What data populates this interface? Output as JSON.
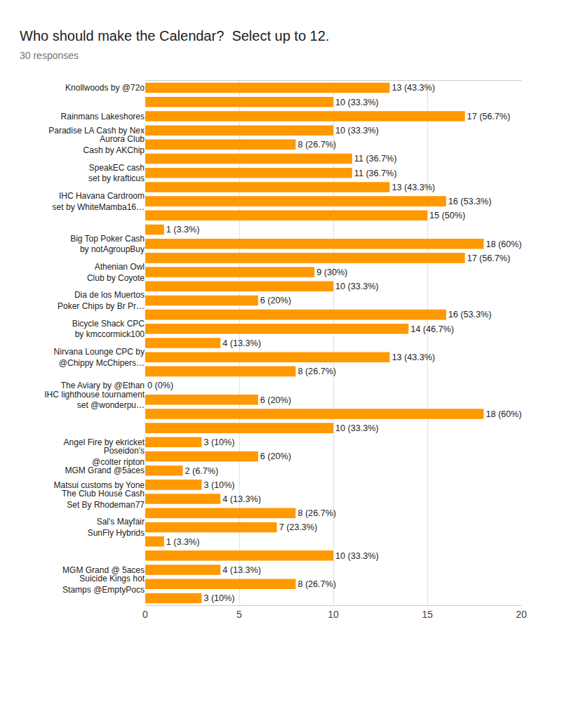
{
  "chart_data": {
    "type": "bar",
    "title": "Who should make the Calendar?  Select up to 12.",
    "subtitle": "30 responses",
    "orientation": "horizontal",
    "categories": [
      "Knollwoods by @72o",
      null,
      "Rainmans Lakeshores",
      "Paradise LA Cash by Nex",
      "Aurora Club Cash by AKChip",
      null,
      "SpeakEC cash set by krafticus",
      null,
      "IHC Havana Cardroom set by WhiteMamba16…",
      null,
      null,
      "Big Top Poker Cash by notAgroupBuy",
      null,
      "Athenian Owl Club by Coyote",
      null,
      "Dia de los Muertos Poker Chips by Br Pr…",
      null,
      "Bicycle Shack CPC by kmccormick100",
      null,
      "Nirvana Lounge CPC by @Chippy McChipers…",
      null,
      "The Aviary by @Ethan",
      "IHC lighthouse tournament set @wonderpu…",
      null,
      null,
      "Angel Fire by ekricket",
      "Poseidon's @colter ripton",
      "MGM Grand @5aces",
      "Matsui customs by Yone",
      "The Club House Cash Set By Rhodeman77",
      null,
      "Sal's Mayfair SunFly Hybrids",
      null,
      null,
      "MGM Grand @ 5aces",
      "Suicide Kings hot Stamps @EmptyPocs",
      null
    ],
    "values": [
      13,
      10,
      17,
      10,
      8,
      11,
      11,
      13,
      16,
      15,
      1,
      18,
      17,
      9,
      10,
      6,
      16,
      14,
      4,
      13,
      8,
      0,
      6,
      18,
      10,
      3,
      6,
      2,
      3,
      4,
      8,
      7,
      1,
      10,
      4,
      8,
      3
    ],
    "value_labels": [
      "13 (43.3%)",
      "10 (33.3%)",
      "17 (56.7%)",
      "10 (33.3%)",
      "8 (26.7%)",
      "11 (36.7%)",
      "11 (36.7%)",
      "13 (43.3%)",
      "16 (53.3%)",
      "15 (50%)",
      "1 (3.3%)",
      "18 (60%)",
      "17 (56.7%)",
      "9 (30%)",
      "10 (33.3%)",
      "6 (20%)",
      "16 (53.3%)",
      "14 (46.7%)",
      "4 (13.3%)",
      "13 (43.3%)",
      "8 (26.7%)",
      "0 (0%)",
      "6 (20%)",
      "18 (60%)",
      "10 (33.3%)",
      "3 (10%)",
      "6 (20%)",
      "2 (6.7%)",
      "3 (10%)",
      "4 (13.3%)",
      "8 (26.7%)",
      "7 (23.3%)",
      "1 (3.3%)",
      "10 (33.3%)",
      "4 (13.3%)",
      "8 (26.7%)",
      "3 (10%)"
    ],
    "color": "#ff9900",
    "xlim": [
      0,
      20
    ],
    "xticks": [
      0,
      5,
      10,
      15,
      20
    ],
    "grid": true,
    "data_labels": true
  }
}
